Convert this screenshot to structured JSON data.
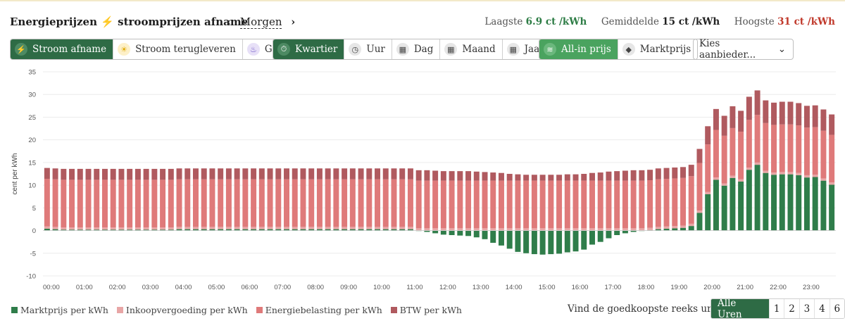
{
  "header": {
    "title_part1": "Energieprijzen",
    "title_part2": "stroomprijzen afname",
    "nav_day": "Morgen",
    "lowest_label": "Laagste",
    "lowest_value": "6.9 ct /kWh",
    "average_label": "Gemiddelde",
    "average_value": "15 ct /kWh",
    "highest_label": "Hoogste",
    "highest_value": "31 ct /kWh"
  },
  "energy_tabs": [
    {
      "label": "Stroom afname",
      "icon": "bolt-icon"
    },
    {
      "label": "Stroom terugleveren",
      "icon": "sun-icon"
    },
    {
      "label": "Gas",
      "icon": "flame-icon"
    }
  ],
  "period_tabs": [
    {
      "label": "Kwartier",
      "icon": "stopwatch-icon"
    },
    {
      "label": "Uur",
      "icon": "clock-icon"
    },
    {
      "label": "Dag",
      "icon": "calendar-day-icon"
    },
    {
      "label": "Maand",
      "icon": "calendar-month-icon"
    },
    {
      "label": "Jaar",
      "icon": "calendar-year-icon"
    }
  ],
  "price_tabs": [
    {
      "label": "All-in prijs",
      "icon": "layers-icon"
    },
    {
      "label": "Marktprijs",
      "icon": "tag-icon"
    }
  ],
  "supplier_select": {
    "value": "Kies aanbieder..."
  },
  "legend": [
    {
      "label": "Marktprijs per kWh",
      "color": "#2f7d4a"
    },
    {
      "label": "Inkoopvergoeding per kWh",
      "color": "#e8a6a6"
    },
    {
      "label": "Energiebelasting per kWh",
      "color": "#df7a7a"
    },
    {
      "label": "BTW per kWh",
      "color": "#b05a5f"
    }
  ],
  "cheapest": {
    "label": "Vind de goedkoopste reeks uren",
    "options": [
      "Alle Uren",
      "1",
      "2",
      "3",
      "4",
      "6"
    ]
  },
  "chart_data": {
    "type": "bar",
    "stacked": true,
    "ylabel": "cent per kWh",
    "ylim": [
      -10,
      35
    ],
    "yticks": [
      -10,
      -5,
      0,
      5,
      10,
      15,
      20,
      25,
      30,
      35
    ],
    "xticks": [
      "00:00",
      "01:00",
      "02:00",
      "03:00",
      "04:00",
      "05:00",
      "06:00",
      "07:00",
      "08:00",
      "09:00",
      "10:00",
      "11:00",
      "12:00",
      "13:00",
      "14:00",
      "15:00",
      "16:00",
      "17:00",
      "18:00",
      "19:00",
      "20:00",
      "21:00",
      "22:00",
      "23:00"
    ],
    "interval": "15 min",
    "grid": true,
    "series": [
      {
        "name": "Marktprijs per kWh",
        "color": "#2f7d4a",
        "values": [
          0.4,
          0.3,
          0.2,
          0.2,
          0.2,
          0.2,
          0.2,
          0.2,
          0.2,
          0.2,
          0.2,
          0.2,
          0.2,
          0.2,
          0.2,
          0.2,
          0.3,
          0.3,
          0.3,
          0.3,
          0.3,
          0.3,
          0.3,
          0.3,
          0.3,
          0.3,
          0.3,
          0.3,
          0.3,
          0.3,
          0.3,
          0.3,
          0.3,
          0.3,
          0.3,
          0.3,
          0.3,
          0.3,
          0.3,
          0.3,
          0.3,
          0.3,
          0.3,
          0.3,
          0.3,
          -0.1,
          -0.3,
          -0.6,
          -0.9,
          -1.0,
          -1.1,
          -1.2,
          -1.5,
          -1.9,
          -2.7,
          -3.3,
          -4.0,
          -4.7,
          -5.0,
          -5.2,
          -5.3,
          -5.2,
          -5.1,
          -4.8,
          -4.6,
          -4.2,
          -3.1,
          -2.5,
          -1.7,
          -1.0,
          -0.6,
          -0.3,
          -0.1,
          0.1,
          0.3,
          0.4,
          0.5,
          0.6,
          1.0,
          3.9,
          8.0,
          11.2,
          9.9,
          11.6,
          10.8,
          13.4,
          14.5,
          12.7,
          12.3,
          12.4,
          12.4,
          12.2,
          11.7,
          11.8,
          11.0,
          10.1
        ]
      },
      {
        "name": "Inkoopvergoeding per kWh",
        "color": "#e8a6a6",
        "values": [
          0.5,
          0.5,
          0.5,
          0.5,
          0.5,
          0.5,
          0.5,
          0.5,
          0.5,
          0.5,
          0.5,
          0.5,
          0.5,
          0.5,
          0.5,
          0.5,
          0.5,
          0.5,
          0.5,
          0.5,
          0.5,
          0.5,
          0.5,
          0.5,
          0.5,
          0.5,
          0.5,
          0.5,
          0.5,
          0.5,
          0.5,
          0.5,
          0.5,
          0.5,
          0.5,
          0.5,
          0.5,
          0.5,
          0.5,
          0.5,
          0.5,
          0.5,
          0.5,
          0.5,
          0.5,
          0.5,
          0.5,
          0.5,
          0.5,
          0.5,
          0.5,
          0.5,
          0.5,
          0.5,
          0.5,
          0.5,
          0.5,
          0.5,
          0.5,
          0.5,
          0.5,
          0.5,
          0.5,
          0.5,
          0.5,
          0.5,
          0.5,
          0.5,
          0.5,
          0.5,
          0.5,
          0.5,
          0.5,
          0.5,
          0.5,
          0.5,
          0.5,
          0.5,
          0.5,
          0.5,
          0.5,
          0.5,
          0.5,
          0.5,
          0.5,
          0.5,
          0.5,
          0.5,
          0.5,
          0.5,
          0.5,
          0.5,
          0.5,
          0.5,
          0.5,
          0.5
        ]
      },
      {
        "name": "Energiebelasting per kWh",
        "color": "#df7a7a",
        "values": [
          10.5,
          10.5,
          10.5,
          10.5,
          10.5,
          10.5,
          10.5,
          10.5,
          10.5,
          10.5,
          10.5,
          10.5,
          10.5,
          10.5,
          10.5,
          10.5,
          10.5,
          10.5,
          10.5,
          10.5,
          10.5,
          10.5,
          10.5,
          10.5,
          10.5,
          10.5,
          10.5,
          10.5,
          10.5,
          10.5,
          10.5,
          10.5,
          10.5,
          10.5,
          10.5,
          10.5,
          10.5,
          10.5,
          10.5,
          10.5,
          10.5,
          10.5,
          10.5,
          10.5,
          10.5,
          10.5,
          10.5,
          10.5,
          10.5,
          10.5,
          10.5,
          10.5,
          10.5,
          10.5,
          10.5,
          10.5,
          10.5,
          10.5,
          10.5,
          10.5,
          10.5,
          10.5,
          10.5,
          10.5,
          10.5,
          10.5,
          10.5,
          10.5,
          10.5,
          10.5,
          10.5,
          10.5,
          10.5,
          10.5,
          10.5,
          10.5,
          10.5,
          10.5,
          10.5,
          10.5,
          10.5,
          10.5,
          10.5,
          10.5,
          10.5,
          10.5,
          10.5,
          10.5,
          10.5,
          10.5,
          10.5,
          10.5,
          10.5,
          10.5,
          10.5,
          10.5
        ]
      },
      {
        "name": "BTW per kWh",
        "color": "#b05a5f",
        "values": [
          2.4,
          2.4,
          2.4,
          2.4,
          2.4,
          2.4,
          2.4,
          2.4,
          2.4,
          2.4,
          2.4,
          2.4,
          2.4,
          2.4,
          2.4,
          2.4,
          2.4,
          2.4,
          2.4,
          2.4,
          2.4,
          2.4,
          2.4,
          2.4,
          2.4,
          2.4,
          2.4,
          2.4,
          2.4,
          2.4,
          2.4,
          2.4,
          2.4,
          2.4,
          2.4,
          2.4,
          2.4,
          2.4,
          2.4,
          2.4,
          2.4,
          2.4,
          2.4,
          2.4,
          2.4,
          2.3,
          2.3,
          2.2,
          2.1,
          2.1,
          2.1,
          2.1,
          2.0,
          1.9,
          1.8,
          1.7,
          1.5,
          1.4,
          1.3,
          1.3,
          1.3,
          1.3,
          1.3,
          1.4,
          1.4,
          1.5,
          1.7,
          1.8,
          2.0,
          2.1,
          2.2,
          2.3,
          2.3,
          2.3,
          2.4,
          2.4,
          2.4,
          2.4,
          2.5,
          3.1,
          4.0,
          4.6,
          4.4,
          4.8,
          4.6,
          5.1,
          5.4,
          5.0,
          4.9,
          5.0,
          5.0,
          4.9,
          4.8,
          4.8,
          4.7,
          4.5
        ]
      }
    ]
  }
}
